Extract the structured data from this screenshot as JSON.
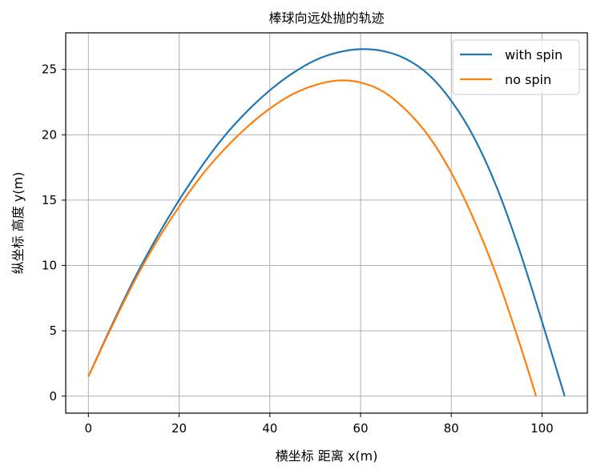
{
  "chart_data": {
    "type": "line",
    "title": "棒球向远处抛的轨迹",
    "xlabel": "横坐标 距离 x(m)",
    "ylabel": "纵坐标 高度 y(m)",
    "xlim": [
      -5,
      110
    ],
    "ylim": [
      -1.3,
      27.8
    ],
    "xticks": [
      0,
      20,
      40,
      60,
      80,
      100
    ],
    "xtick_labels": [
      "0",
      "20",
      "40",
      "60",
      "80",
      "100"
    ],
    "yticks": [
      0,
      5,
      10,
      15,
      20,
      25
    ],
    "ytick_labels": [
      "0",
      "5",
      "10",
      "15",
      "20",
      "25"
    ],
    "grid": true,
    "legend_position": "top-right",
    "series": [
      {
        "name": "with spin",
        "color": "#1f77b4",
        "x": [
          0,
          5,
          10,
          15,
          20,
          25,
          30,
          35,
          40,
          45,
          50,
          55,
          60,
          65,
          70,
          75,
          80,
          85,
          90,
          95,
          100,
          105
        ],
        "y": [
          1.5,
          5.3,
          8.9,
          12.1,
          15.0,
          17.6,
          19.9,
          21.8,
          23.4,
          24.7,
          25.7,
          26.3,
          26.55,
          26.4,
          25.8,
          24.6,
          22.6,
          19.8,
          16.0,
          11.2,
          5.7,
          0.0
        ]
      },
      {
        "name": "no spin",
        "color": "#ff7f0e",
        "x": [
          0,
          5,
          10,
          15,
          20,
          25,
          30,
          35,
          40,
          45,
          50,
          55,
          60,
          65,
          70,
          75,
          80,
          85,
          90,
          95,
          98.7
        ],
        "y": [
          1.5,
          5.2,
          8.7,
          11.8,
          14.5,
          16.9,
          18.9,
          20.6,
          22.0,
          23.1,
          23.8,
          24.15,
          24.0,
          23.3,
          21.9,
          19.9,
          17.1,
          13.5,
          9.2,
          4.1,
          0.0
        ]
      }
    ]
  }
}
